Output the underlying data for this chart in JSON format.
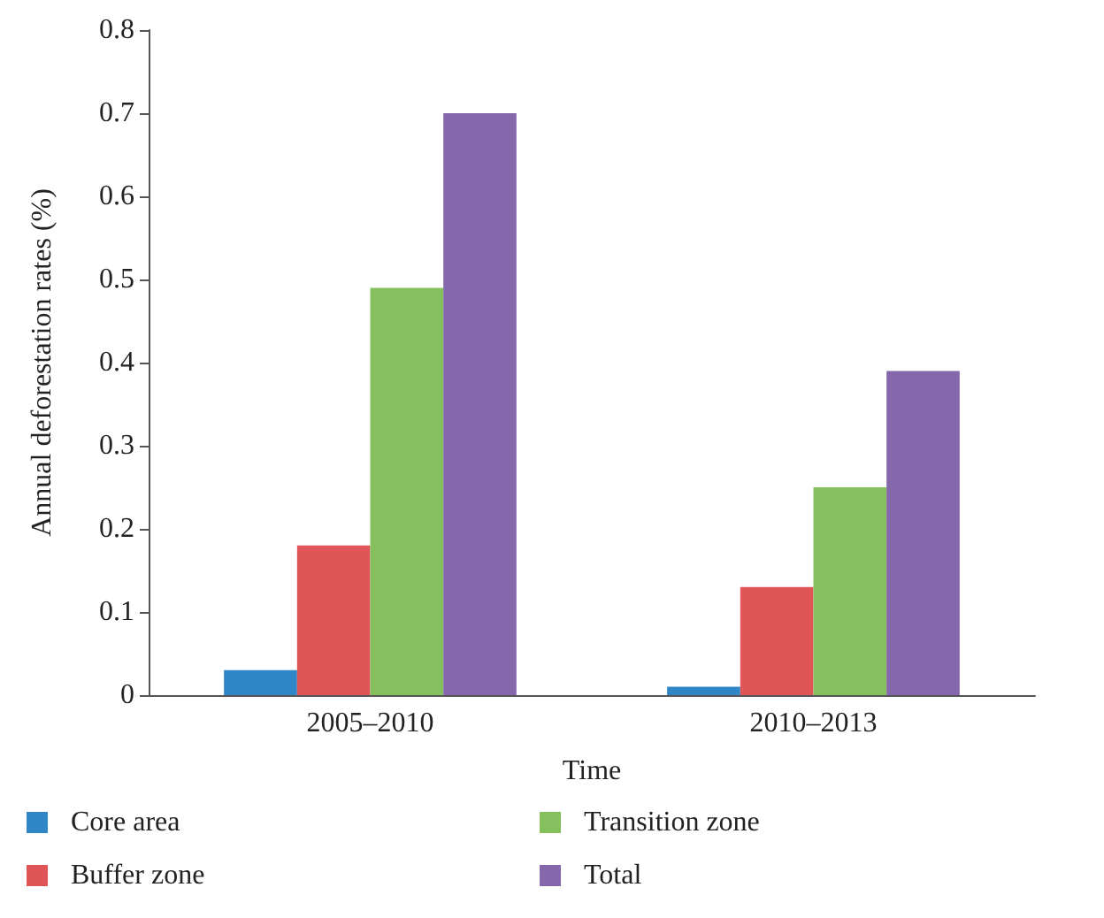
{
  "chart_data": {
    "type": "bar",
    "xlabel": "Time",
    "ylabel": "Annual deforestation rates (%)",
    "categories": [
      "2005–2010",
      "2010–2013"
    ],
    "series": [
      {
        "name": "Core area",
        "color": "#2f86c6",
        "values": [
          0.03,
          0.01
        ]
      },
      {
        "name": "Buffer zone",
        "color": "#e05658",
        "values": [
          0.18,
          0.13
        ]
      },
      {
        "name": "Transition zone",
        "color": "#86c05e",
        "values": [
          0.49,
          0.25
        ]
      },
      {
        "name": "Total",
        "color": "#8567ab",
        "values": [
          0.7,
          0.39
        ]
      }
    ],
    "ylim": [
      0,
      0.8
    ],
    "yticks": [
      0,
      0.1,
      0.2,
      0.3,
      0.4,
      0.5,
      0.6,
      0.7,
      0.8
    ],
    "grid": false,
    "legend": "bottom"
  }
}
